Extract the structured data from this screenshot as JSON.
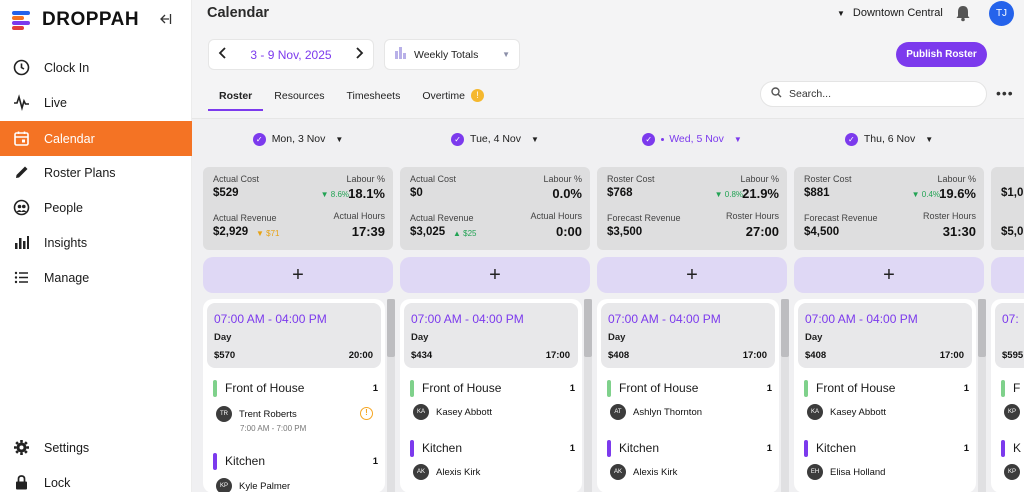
{
  "app": {
    "name": "DROPPAH",
    "logo_colors": [
      "#2563eb",
      "#f47324",
      "#7c3aed",
      "#e23d3d"
    ],
    "accent": "#7c3aed",
    "nav_active_color": "#f47324"
  },
  "sidebar": {
    "items": [
      {
        "label": "Clock In",
        "icon": "clock-icon"
      },
      {
        "label": "Live",
        "icon": "pulse-icon"
      },
      {
        "label": "Calendar",
        "icon": "calendar-icon",
        "active": true
      },
      {
        "label": "Roster Plans",
        "icon": "pencil-icon"
      },
      {
        "label": "People",
        "icon": "people-icon"
      },
      {
        "label": "Insights",
        "icon": "bar-chart-icon"
      },
      {
        "label": "Manage",
        "icon": "list-icon"
      }
    ],
    "bottom_items": [
      {
        "label": "Settings",
        "icon": "gear-icon"
      },
      {
        "label": "Lock",
        "icon": "lock-icon"
      }
    ]
  },
  "header": {
    "title": "Calendar",
    "location": "Downtown Central",
    "user_initials": "TJ"
  },
  "toolbar": {
    "week_label": "3 - 9 Nov, 2025",
    "totals_label": "Weekly Totals",
    "publish_label": "Publish Roster"
  },
  "tabs": [
    {
      "label": "Roster",
      "active": true
    },
    {
      "label": "Resources"
    },
    {
      "label": "Timesheets"
    },
    {
      "label": "Overtime",
      "badge": "!"
    }
  ],
  "search": {
    "placeholder": "Search..."
  },
  "days": [
    {
      "label": "Mon, 3 Nov",
      "metrics": {
        "cost_label": "Actual Cost",
        "cost": "$529",
        "labour_label": "Labour %",
        "labour": "18.1%",
        "labour_trend": "▼ 8.6%",
        "revenue_label": "Actual Revenue",
        "revenue": "$2,929",
        "revenue_trend": "▼ $71",
        "hours_label": "Actual Hours",
        "hours": "17:39"
      },
      "shift": {
        "time": "07:00 AM - 04:00 PM",
        "name": "Day",
        "cost": "$570",
        "hours": "20:00",
        "areas": [
          {
            "name": "Front of House",
            "count": "1",
            "color": "#7fd18b",
            "person": {
              "initials": "TR",
              "name": "Trent Roberts",
              "time": "7:00 AM - 7:00 PM",
              "alert": true
            }
          },
          {
            "name": "Kitchen",
            "count": "1",
            "color": "#7c3aed",
            "person": {
              "initials": "KP",
              "name": "Kyle Palmer"
            }
          }
        ]
      }
    },
    {
      "label": "Tue, 4 Nov",
      "metrics": {
        "cost_label": "Actual Cost",
        "cost": "$0",
        "labour_label": "Labour %",
        "labour": "0.0%",
        "revenue_label": "Actual Revenue",
        "revenue": "$3,025",
        "revenue_trend": "▲ $25",
        "hours_label": "Actual Hours",
        "hours": "0:00"
      },
      "shift": {
        "time": "07:00 AM - 04:00 PM",
        "name": "Day",
        "cost": "$434",
        "hours": "17:00",
        "areas": [
          {
            "name": "Front of House",
            "count": "1",
            "color": "#7fd18b",
            "person": {
              "initials": "KA",
              "name": "Kasey Abbott"
            }
          },
          {
            "name": "Kitchen",
            "count": "1",
            "color": "#7c3aed",
            "person": {
              "initials": "AK",
              "name": "Alexis Kirk"
            }
          }
        ]
      }
    },
    {
      "label": "Wed, 5 Nov",
      "today": true,
      "metrics": {
        "cost_label": "Roster Cost",
        "cost": "$768",
        "labour_label": "Labour %",
        "labour": "21.9%",
        "labour_trend": "▼ 0.8%",
        "revenue_label": "Forecast Revenue",
        "revenue": "$3,500",
        "hours_label": "Roster Hours",
        "hours": "27:00"
      },
      "shift": {
        "time": "07:00 AM - 04:00 PM",
        "name": "Day",
        "cost": "$408",
        "hours": "17:00",
        "areas": [
          {
            "name": "Front of House",
            "count": "1",
            "color": "#7fd18b",
            "person": {
              "initials": "AT",
              "name": "Ashlyn Thornton"
            }
          },
          {
            "name": "Kitchen",
            "count": "1",
            "color": "#7c3aed",
            "person": {
              "initials": "AK",
              "name": "Alexis Kirk"
            }
          }
        ]
      }
    },
    {
      "label": "Thu, 6 Nov",
      "metrics": {
        "cost_label": "Roster Cost",
        "cost": "$881",
        "labour_label": "Labour %",
        "labour": "19.6%",
        "labour_trend": "▼ 0.4%",
        "revenue_label": "Forecast Revenue",
        "revenue": "$4,500",
        "hours_label": "Roster Hours",
        "hours": "31:30"
      },
      "shift": {
        "time": "07:00 AM - 04:00 PM",
        "name": "Day",
        "cost": "$408",
        "hours": "17:00",
        "areas": [
          {
            "name": "Front of House",
            "count": "1",
            "color": "#7fd18b",
            "person": {
              "initials": "KA",
              "name": "Kasey Abbott"
            }
          },
          {
            "name": "Kitchen",
            "count": "1",
            "color": "#7c3aed",
            "person": {
              "initials": "EH",
              "name": "Elisa Holland"
            }
          }
        ]
      }
    }
  ],
  "partial_day": {
    "cost_fragment": "$1,0",
    "revenue_fragment": "$5,0",
    "time_fragment": "07:",
    "cost2_fragment": "$595",
    "area1_fragment": "F",
    "person1_initials": "KP",
    "area2_fragment": "K",
    "person2_initials": "KP"
  }
}
